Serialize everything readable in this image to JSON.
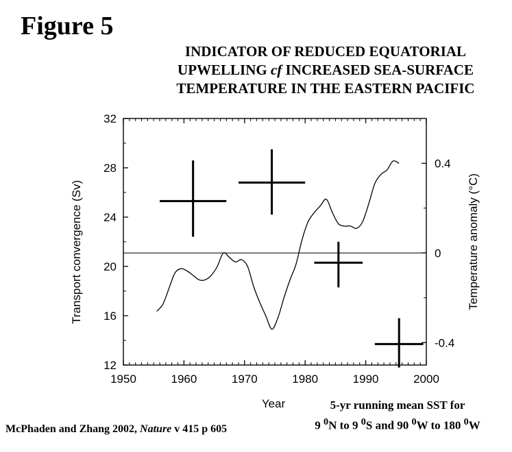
{
  "figure_label": "Figure 5",
  "title_lines": [
    "INDICATOR OF REDUCED EQUATORIAL",
    "UPWELLING",
    "cf",
    "INCREASED SEA-SURFACE",
    "TEMPERATURE IN THE EASTERN PACIFIC"
  ],
  "note": {
    "line1": "5-yr running mean SST for",
    "line2": {
      "a": "9 ",
      "sup1": "0",
      "b": "N to 9 ",
      "sup2": "0",
      "c": "S and 90 ",
      "sup3": "0",
      "d": "W to 180 ",
      "sup4": "0",
      "e": "W"
    }
  },
  "source": {
    "authors": "McPhaden and Zhang 2002, ",
    "journal": "Nature",
    "rest": " v 415 p 605"
  },
  "chart_data": {
    "type": "line",
    "xlabel": "Year",
    "ylabel": "Transport convergence (Sv)",
    "y2label": "Temperature anomaly (°C)",
    "xlim": [
      1950,
      2000
    ],
    "ylim": [
      12,
      32
    ],
    "y2lim": [
      -0.5,
      0.6
    ],
    "x_ticks": [
      "1950",
      "1960",
      "1970",
      "1980",
      "1990",
      "2000"
    ],
    "y_ticks": [
      "12",
      "16",
      "20",
      "24",
      "28",
      "32"
    ],
    "y2_ticks": [
      "-0.4",
      "0",
      "0.4"
    ],
    "sst_series": {
      "x": [
        1955.5,
        1956.5,
        1957.5,
        1958.5,
        1959.5,
        1960.5,
        1961.5,
        1962.5,
        1963.5,
        1964.5,
        1965.5,
        1966.5,
        1967.5,
        1968.5,
        1969.5,
        1970.5,
        1971.5,
        1972.5,
        1973.5,
        1974.5,
        1975.5,
        1976.5,
        1977.5,
        1978.5,
        1979.5,
        1980.5,
        1981.5,
        1982.5,
        1983.5,
        1984.5,
        1985.5,
        1986.5,
        1987.5,
        1988.5,
        1989.5,
        1990.5,
        1991.5,
        1992.5,
        1993.5,
        1994.5,
        1995.5
      ],
      "y": [
        -0.26,
        -0.23,
        -0.16,
        -0.09,
        -0.07,
        -0.08,
        -0.1,
        -0.12,
        -0.12,
        -0.1,
        -0.06,
        0.0,
        -0.02,
        -0.04,
        -0.03,
        -0.06,
        -0.15,
        -0.22,
        -0.28,
        -0.34,
        -0.29,
        -0.2,
        -0.12,
        -0.05,
        0.06,
        0.14,
        0.18,
        0.21,
        0.24,
        0.18,
        0.13,
        0.12,
        0.12,
        0.11,
        0.14,
        0.22,
        0.31,
        0.35,
        0.37,
        0.41,
        0.4
      ]
    },
    "transport_crosses": [
      {
        "year": 1961.5,
        "year_half_width": 5.5,
        "value": 25.3,
        "value_low": 22.4,
        "value_high": 28.6
      },
      {
        "year": 1974.5,
        "year_half_width": 5.5,
        "value": 26.8,
        "value_low": 24.2,
        "value_high": 29.5
      },
      {
        "year": 1985.5,
        "year_half_width": 4.0,
        "value": 20.3,
        "value_low": 18.3,
        "value_high": 22.0
      },
      {
        "year": 1995.5,
        "year_half_width": 4.0,
        "value": 13.7,
        "value_low": 11.8,
        "value_high": 15.8
      }
    ],
    "reference_line_temperature": 0
  }
}
